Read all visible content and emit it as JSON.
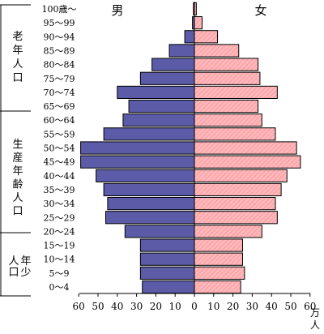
{
  "chart_data": {
    "type": "bar",
    "title": "",
    "xlabel": "",
    "ylabel": "",
    "unit_label": [
      "万",
      "人"
    ],
    "xlim": [
      -60,
      60
    ],
    "x_ticks": [
      "60",
      "50",
      "40",
      "30",
      "20",
      "10",
      "0",
      "10",
      "20",
      "30",
      "40",
      "50",
      "60"
    ],
    "age_groups": [
      "0～4",
      "5～9",
      "10～14",
      "15～19",
      "20～24",
      "25～29",
      "30～34",
      "35～39",
      "40～44",
      "45～49",
      "50～54",
      "55～59",
      "60～64",
      "65～69",
      "70～74",
      "75～79",
      "80～84",
      "85～89",
      "90～94",
      "95～99",
      "100歳～"
    ],
    "series": [
      {
        "name": "男",
        "color": "#5b5ba8",
        "values": [
          27,
          28,
          28,
          28,
          36,
          46,
          45,
          47,
          51,
          59,
          59,
          47,
          37,
          34,
          40,
          28,
          22,
          13,
          5,
          1,
          0.5
        ]
      },
      {
        "name": "女",
        "color": "#ffb6b9",
        "values": [
          24,
          26,
          25,
          25,
          35,
          43,
          42,
          45,
          48,
          55,
          53,
          42,
          35,
          33,
          43,
          34,
          33,
          23,
          12,
          4,
          1
        ]
      }
    ],
    "groups": [
      {
        "label": [
          "老",
          "年",
          "人",
          "口"
        ]
      },
      {
        "label": [
          "生",
          "産",
          "年",
          "齢",
          "人",
          "口"
        ]
      },
      {
        "label": [
          "年",
          "少",
          "人",
          "口"
        ]
      }
    ]
  }
}
